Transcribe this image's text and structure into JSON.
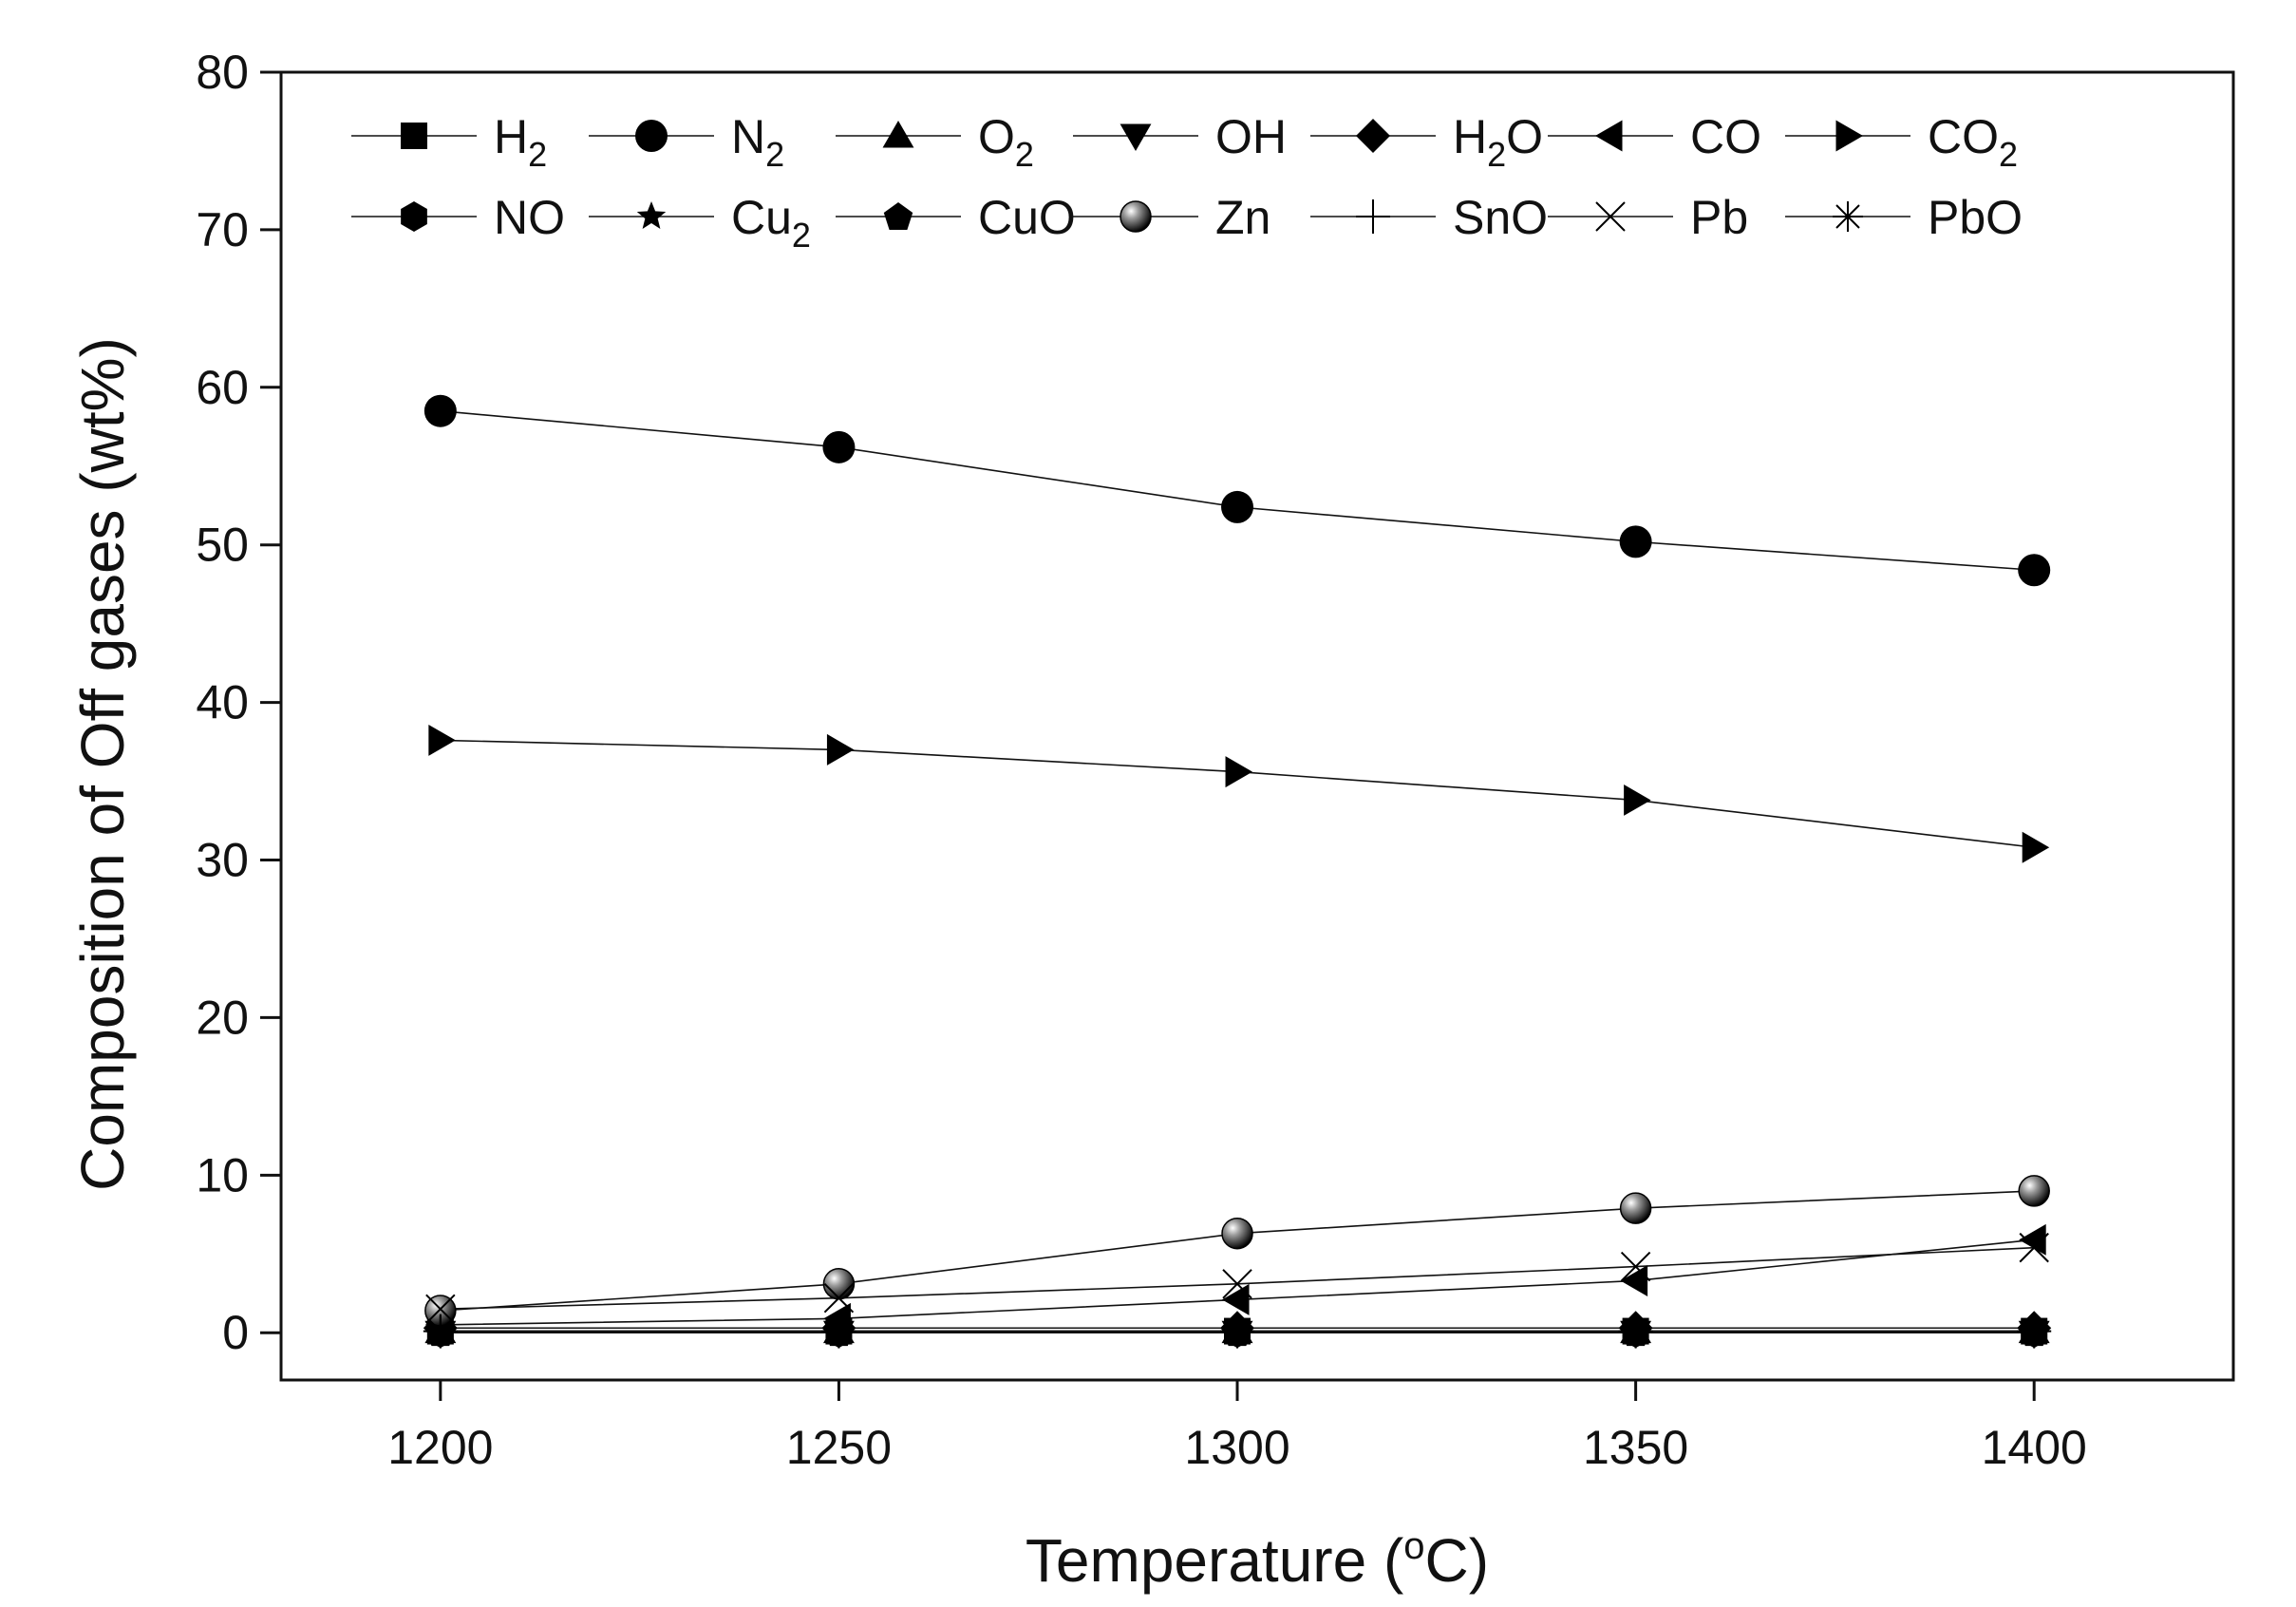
{
  "chart_data": {
    "type": "line",
    "title": "",
    "xlabel": "Temperature (oC)",
    "xlabel_main": "Temperature (",
    "xlabel_super": "o",
    "xlabel_end": "C)",
    "ylabel": "Composition of Off gases (wt%)",
    "xlim": [
      1180,
      1425
    ],
    "ylim": [
      -3,
      80
    ],
    "x": [
      1200,
      1250,
      1300,
      1350,
      1400
    ],
    "x_ticks": [
      "1200",
      "1250",
      "1300",
      "1350",
      "1400"
    ],
    "y_ticks": [
      "0",
      "10",
      "20",
      "30",
      "40",
      "50",
      "60",
      "70",
      "80"
    ],
    "legend_position": "top",
    "series": [
      {
        "name": "H2",
        "label_main": "H",
        "label_sub": "2",
        "marker": "square",
        "values": [
          0.1,
          0.1,
          0.1,
          0.1,
          0.1
        ]
      },
      {
        "name": "N2",
        "label_main": "N",
        "label_sub": "2",
        "marker": "circle",
        "values": [
          58.5,
          56.2,
          52.4,
          50.2,
          48.4
        ]
      },
      {
        "name": "O2",
        "label_main": "O",
        "label_sub": "2",
        "marker": "triangle-up",
        "values": [
          0.1,
          0.1,
          0.1,
          0.1,
          0.1
        ]
      },
      {
        "name": "OH",
        "label_main": "OH",
        "label_sub": "",
        "marker": "triangle-down",
        "values": [
          0,
          0,
          0,
          0,
          0
        ]
      },
      {
        "name": "H2O",
        "label_main": "H",
        "label_sub": "2",
        "label_end": "O",
        "marker": "diamond",
        "values": [
          0.3,
          0.3,
          0.3,
          0.3,
          0.3
        ]
      },
      {
        "name": "CO",
        "label_main": "CO",
        "label_sub": "",
        "marker": "triangle-left",
        "values": [
          0.5,
          0.9,
          2.1,
          3.3,
          5.9
        ]
      },
      {
        "name": "CO2",
        "label_main": "CO",
        "label_sub": "2",
        "marker": "triangle-right",
        "values": [
          37.6,
          37.0,
          35.6,
          33.8,
          30.8
        ]
      },
      {
        "name": "NO",
        "label_main": "NO",
        "label_sub": "",
        "marker": "hexagon",
        "values": [
          0,
          0,
          0,
          0,
          0
        ]
      },
      {
        "name": "Cu2",
        "label_main": "Cu",
        "label_sub": "2",
        "marker": "star",
        "values": [
          0,
          0,
          0,
          0,
          0
        ]
      },
      {
        "name": "CuO",
        "label_main": "CuO",
        "label_sub": "",
        "marker": "pentagon",
        "values": [
          0,
          0,
          0,
          0,
          0
        ]
      },
      {
        "name": "Zn",
        "label_main": "Zn",
        "label_sub": "",
        "marker": "sphere",
        "values": [
          1.4,
          3.1,
          6.3,
          7.9,
          9.0
        ]
      },
      {
        "name": "SnO",
        "label_main": "SnO",
        "label_sub": "",
        "marker": "plus",
        "values": [
          0.1,
          0.1,
          0.1,
          0.1,
          0.1
        ]
      },
      {
        "name": "Pb",
        "label_main": "Pb",
        "label_sub": "",
        "marker": "x",
        "values": [
          1.5,
          2.2,
          3.1,
          4.2,
          5.4
        ]
      },
      {
        "name": "PbO",
        "label_main": "PbO",
        "label_sub": "",
        "marker": "asterisk",
        "values": [
          0.1,
          0.1,
          0.1,
          0.1,
          0.1
        ]
      }
    ]
  }
}
